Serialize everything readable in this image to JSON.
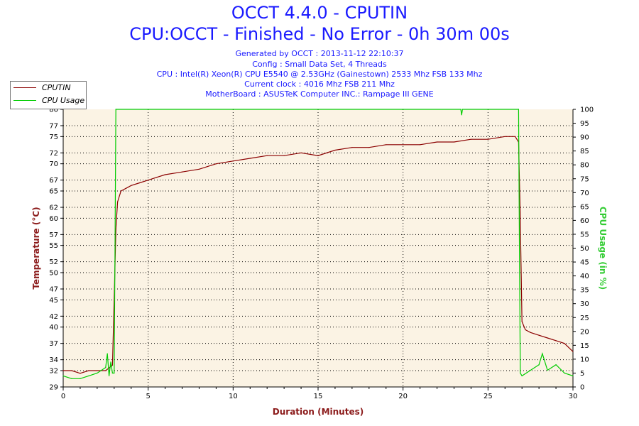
{
  "header": {
    "title": "OCCT 4.4.0 - CPUTIN",
    "subtitle": "CPU:OCCT - Finished - No Error - 0h 30m 00s",
    "info": [
      "Generated by OCCT : 2013-11-12 22:10:37",
      "Config : Small Data Set, 4 Threads",
      "CPU : Intel(R) Xeon(R) CPU E5540 @ 2.53GHz (Gainestown) 2533 Mhz FSB 133 Mhz",
      "Current clock : 4016 Mhz FSB 211 Mhz",
      "MotherBoard : ASUSTeK Computer INC.: Rampage III GENE"
    ]
  },
  "legend": [
    {
      "label": "CPUTIN",
      "color": "#8b0000"
    },
    {
      "label": "CPU Usage",
      "color": "#00cc00"
    }
  ],
  "chart_data": {
    "type": "line",
    "title": "OCCT 4.4.0 - CPUTIN",
    "xlabel": "Duration (Minutes)",
    "ylabel_left": "Temperature (°C)",
    "ylabel_right": "CPU Usage (in %)",
    "xlim": [
      0,
      30
    ],
    "ylim_left": [
      29,
      80
    ],
    "ylim_right": [
      0,
      100
    ],
    "x_ticks": [
      0,
      5,
      10,
      15,
      20,
      25,
      30
    ],
    "y_left_ticks": [
      29,
      32,
      34,
      37,
      40,
      42,
      45,
      47,
      50,
      52,
      55,
      57,
      60,
      62,
      65,
      67,
      70,
      72,
      75,
      77,
      80
    ],
    "y_right_ticks": [
      0,
      5,
      10,
      15,
      20,
      25,
      30,
      35,
      40,
      45,
      50,
      55,
      60,
      65,
      70,
      75,
      80,
      85,
      90,
      95,
      100
    ],
    "grid": true,
    "legend_position": "top-left",
    "series": [
      {
        "name": "CPUTIN",
        "axis": "left",
        "color": "#8b0000",
        "x": [
          0,
          0.5,
          1,
          1.5,
          2,
          2.5,
          2.9,
          3.0,
          3.1,
          3.2,
          3.4,
          3.7,
          4,
          4.5,
          5,
          5.5,
          6,
          7,
          8,
          9,
          10,
          11,
          12,
          13,
          14,
          15,
          16,
          17,
          18,
          19,
          20,
          21,
          22,
          23,
          24,
          25,
          26,
          26.6,
          26.8,
          26.9,
          27.0,
          27.2,
          27.5,
          28,
          28.5,
          29,
          29.5,
          30
        ],
        "y": [
          32,
          32,
          31.5,
          32,
          32,
          32,
          33,
          45,
          58,
          63,
          65,
          65.5,
          66,
          66.5,
          67,
          67.5,
          68,
          68.5,
          69,
          70,
          70.5,
          71,
          71.5,
          71.5,
          72,
          71.5,
          72.5,
          73,
          73,
          73.5,
          73.5,
          73.5,
          74,
          74,
          74.5,
          74.5,
          75,
          75,
          74,
          60,
          41,
          39.5,
          39,
          38.5,
          38,
          37.5,
          37,
          35.5
        ]
      },
      {
        "name": "CPU Usage",
        "axis": "right",
        "color": "#00cc00",
        "x": [
          0,
          0.5,
          1,
          1.5,
          2,
          2.5,
          2.6,
          2.7,
          2.8,
          2.9,
          3.0,
          3.05,
          3.1,
          10,
          20,
          23.4,
          23.45,
          23.5,
          26.8,
          26.85,
          26.9,
          27.0,
          27.5,
          28,
          28.2,
          28.5,
          29,
          29.5,
          30
        ],
        "y": [
          4,
          3,
          3,
          4,
          5,
          7,
          12,
          4,
          9,
          5,
          5,
          50,
          100,
          100,
          100,
          100,
          98,
          100,
          100,
          50,
          5,
          4,
          6,
          8,
          12,
          6,
          8,
          5,
          4
        ]
      }
    ]
  }
}
